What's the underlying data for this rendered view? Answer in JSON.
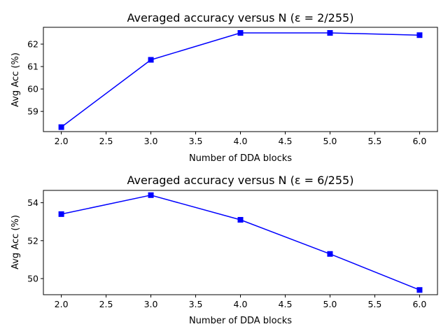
{
  "chart_data": [
    {
      "type": "line",
      "title": "Averaged accuracy versus N (ε = 2/255)",
      "xlabel": "Number of DDA blocks",
      "ylabel": "Avg Acc (%)",
      "xlim": [
        1.8,
        6.2
      ],
      "ylim": [
        58.1,
        62.75
      ],
      "xticks": [
        "2.0",
        "2.5",
        "3.0",
        "3.5",
        "4.0",
        "4.5",
        "5.0",
        "5.5",
        "6.0"
      ],
      "yticks": [
        "59",
        "60",
        "61",
        "62"
      ],
      "x": [
        2,
        3,
        4,
        5,
        6
      ],
      "series": [
        {
          "values": [
            58.3,
            61.3,
            62.5,
            62.5,
            62.4
          ],
          "color": "#0000ff",
          "marker": "square"
        }
      ],
      "grid": false,
      "legend": false
    },
    {
      "type": "line",
      "title": "Averaged accuracy versus N (ε = 6/255)",
      "xlabel": "Number of DDA blocks",
      "ylabel": "Avg Acc (%)",
      "xlim": [
        1.8,
        6.2
      ],
      "ylim": [
        49.15,
        54.65
      ],
      "xticks": [
        "2.0",
        "2.5",
        "3.0",
        "3.5",
        "4.0",
        "4.5",
        "5.0",
        "5.5",
        "6.0"
      ],
      "yticks": [
        "50",
        "52",
        "54"
      ],
      "x": [
        2,
        3,
        4,
        5,
        6
      ],
      "series": [
        {
          "values": [
            53.4,
            54.4,
            53.1,
            51.3,
            49.4
          ],
          "color": "#0000ff",
          "marker": "square"
        }
      ],
      "grid": false,
      "legend": false
    }
  ]
}
